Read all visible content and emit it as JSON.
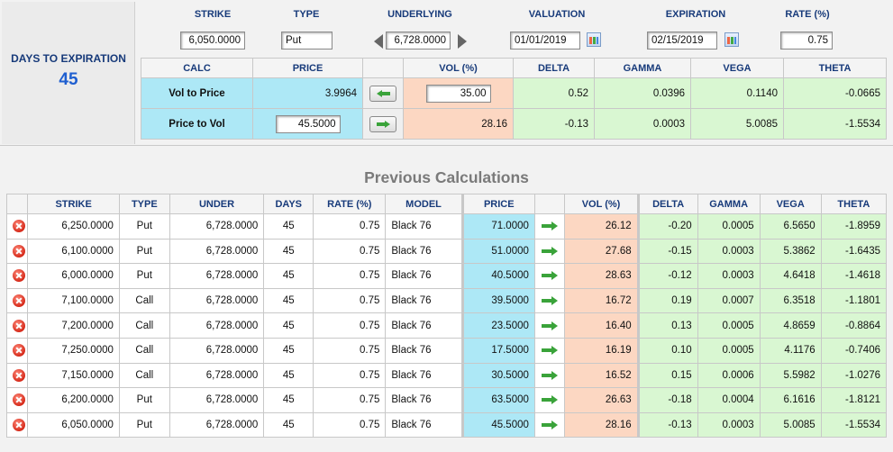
{
  "days_to_expiration": {
    "label": "DAYS TO EXPIRATION",
    "value": "45"
  },
  "params": {
    "strike": {
      "label": "STRIKE",
      "value": "6,050.0000"
    },
    "type": {
      "label": "TYPE",
      "value": "Put"
    },
    "underlying": {
      "label": "UNDERLYING",
      "value": "6,728.0000"
    },
    "valuation": {
      "label": "VALUATION",
      "value": "01/01/2019"
    },
    "expiration": {
      "label": "EXPIRATION",
      "value": "02/15/2019"
    },
    "rate": {
      "label": "RATE (%)",
      "value": "0.75"
    }
  },
  "calc": {
    "headers": [
      "CALC",
      "PRICE",
      "",
      "VOL (%)",
      "DELTA",
      "GAMMA",
      "VEGA",
      "THETA"
    ],
    "vol_to_price": {
      "label": "Vol to Price",
      "price": "3.9964",
      "vol": "35.00",
      "delta": "0.52",
      "gamma": "0.0396",
      "vega": "0.1140",
      "theta": "-0.0665"
    },
    "price_to_vol": {
      "label": "Price to Vol",
      "price": "45.5000",
      "vol": "28.16",
      "delta": "-0.13",
      "gamma": "0.0003",
      "vega": "5.0085",
      "theta": "-1.5534"
    }
  },
  "previous": {
    "title": "Previous Calculations",
    "headers": [
      "",
      "STRIKE",
      "TYPE",
      "UNDER",
      "DAYS",
      "RATE (%)",
      "MODEL",
      "PRICE",
      "",
      "VOL (%)",
      "DELTA",
      "GAMMA",
      "VEGA",
      "THETA"
    ],
    "rows": [
      {
        "strike": "6,250.0000",
        "type": "Put",
        "under": "6,728.0000",
        "days": "45",
        "rate": "0.75",
        "model": "Black 76",
        "price": "71.0000",
        "vol": "26.12",
        "delta": "-0.20",
        "gamma": "0.0005",
        "vega": "6.5650",
        "theta": "-1.8959"
      },
      {
        "strike": "6,100.0000",
        "type": "Put",
        "under": "6,728.0000",
        "days": "45",
        "rate": "0.75",
        "model": "Black 76",
        "price": "51.0000",
        "vol": "27.68",
        "delta": "-0.15",
        "gamma": "0.0003",
        "vega": "5.3862",
        "theta": "-1.6435"
      },
      {
        "strike": "6,000.0000",
        "type": "Put",
        "under": "6,728.0000",
        "days": "45",
        "rate": "0.75",
        "model": "Black 76",
        "price": "40.5000",
        "vol": "28.63",
        "delta": "-0.12",
        "gamma": "0.0003",
        "vega": "4.6418",
        "theta": "-1.4618"
      },
      {
        "strike": "7,100.0000",
        "type": "Call",
        "under": "6,728.0000",
        "days": "45",
        "rate": "0.75",
        "model": "Black 76",
        "price": "39.5000",
        "vol": "16.72",
        "delta": "0.19",
        "gamma": "0.0007",
        "vega": "6.3518",
        "theta": "-1.1801"
      },
      {
        "strike": "7,200.0000",
        "type": "Call",
        "under": "6,728.0000",
        "days": "45",
        "rate": "0.75",
        "model": "Black 76",
        "price": "23.5000",
        "vol": "16.40",
        "delta": "0.13",
        "gamma": "0.0005",
        "vega": "4.8659",
        "theta": "-0.8864"
      },
      {
        "strike": "7,250.0000",
        "type": "Call",
        "under": "6,728.0000",
        "days": "45",
        "rate": "0.75",
        "model": "Black 76",
        "price": "17.5000",
        "vol": "16.19",
        "delta": "0.10",
        "gamma": "0.0005",
        "vega": "4.1176",
        "theta": "-0.7406"
      },
      {
        "strike": "7,150.0000",
        "type": "Call",
        "under": "6,728.0000",
        "days": "45",
        "rate": "0.75",
        "model": "Black 76",
        "price": "30.5000",
        "vol": "16.52",
        "delta": "0.15",
        "gamma": "0.0006",
        "vega": "5.5982",
        "theta": "-1.0276"
      },
      {
        "strike": "6,200.0000",
        "type": "Put",
        "under": "6,728.0000",
        "days": "45",
        "rate": "0.75",
        "model": "Black 76",
        "price": "63.5000",
        "vol": "26.63",
        "delta": "-0.18",
        "gamma": "0.0004",
        "vega": "6.1616",
        "theta": "-1.8121"
      },
      {
        "strike": "6,050.0000",
        "type": "Put",
        "under": "6,728.0000",
        "days": "45",
        "rate": "0.75",
        "model": "Black 76",
        "price": "45.5000",
        "vol": "28.16",
        "delta": "-0.13",
        "gamma": "0.0003",
        "vega": "5.0085",
        "theta": "-1.5534"
      }
    ]
  },
  "colors": {
    "price_bg": "#ade8f6",
    "vol_bg": "#fcd7c2",
    "greek_bg": "#d9f7d2",
    "header_text": "#173a7a",
    "dte_value": "#1f5fd0"
  },
  "icons": {
    "delete": "delete-icon",
    "arrow_left": "arrow-left-icon",
    "arrow_right": "arrow-right-icon",
    "calendar": "calendar-icon"
  }
}
